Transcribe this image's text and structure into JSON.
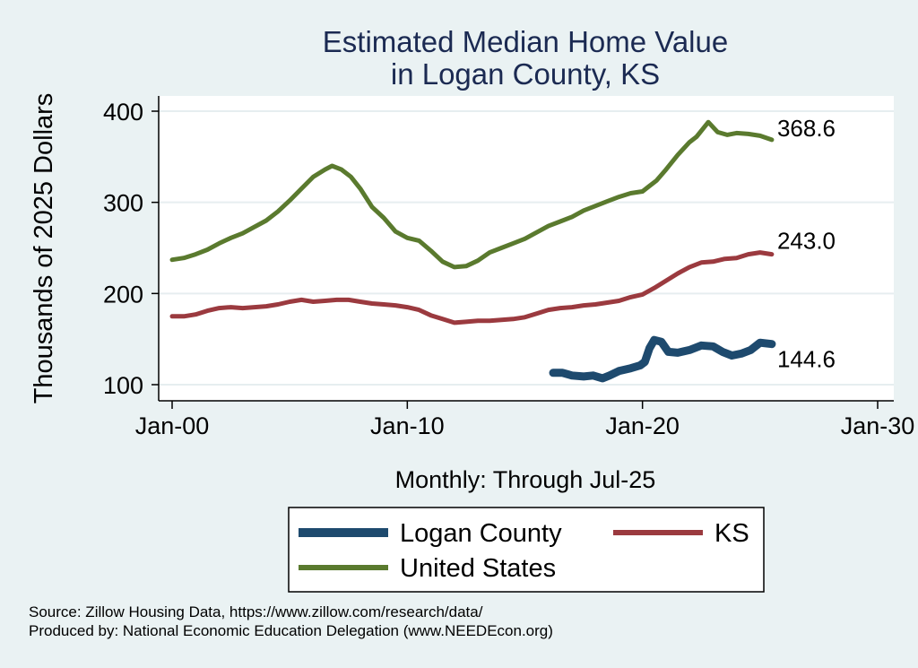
{
  "chart_data": {
    "type": "line",
    "title": [
      "Estimated Median Home Value",
      "in Logan County, KS"
    ],
    "ylabel": "Thousands of 2025 Dollars",
    "xlabel": "Monthly: Through Jul-25",
    "xlim": [
      2000,
      2030
    ],
    "ylim": [
      90,
      410
    ],
    "yticks": [
      {
        "value": 100,
        "label": "100"
      },
      {
        "value": 200,
        "label": "200"
      },
      {
        "value": 300,
        "label": "300"
      },
      {
        "value": 400,
        "label": "400"
      }
    ],
    "xticks": [
      {
        "value": 2000,
        "label": "Jan-00"
      },
      {
        "value": 2010,
        "label": "Jan-10"
      },
      {
        "value": 2020,
        "label": "Jan-20"
      },
      {
        "value": 2030,
        "label": "Jan-30"
      }
    ],
    "grid": true,
    "legend_position": "bottom",
    "series": [
      {
        "name": "United States",
        "color": "#5a7a2e",
        "end_label": "368.6",
        "points": [
          [
            2000.0,
            237
          ],
          [
            2000.5,
            239
          ],
          [
            2001.0,
            243
          ],
          [
            2001.5,
            248
          ],
          [
            2002.0,
            255
          ],
          [
            2002.5,
            261
          ],
          [
            2003.0,
            266
          ],
          [
            2003.5,
            273
          ],
          [
            2004.0,
            280
          ],
          [
            2004.5,
            290
          ],
          [
            2005.0,
            302
          ],
          [
            2005.5,
            315
          ],
          [
            2006.0,
            328
          ],
          [
            2006.5,
            336
          ],
          [
            2006.8,
            340
          ],
          [
            2007.2,
            336
          ],
          [
            2007.6,
            328
          ],
          [
            2008.0,
            315
          ],
          [
            2008.5,
            295
          ],
          [
            2009.0,
            283
          ],
          [
            2009.5,
            268
          ],
          [
            2010.0,
            261
          ],
          [
            2010.5,
            258
          ],
          [
            2011.0,
            247
          ],
          [
            2011.5,
            235
          ],
          [
            2012.0,
            229
          ],
          [
            2012.5,
            230
          ],
          [
            2013.0,
            236
          ],
          [
            2013.5,
            245
          ],
          [
            2014.0,
            250
          ],
          [
            2014.5,
            255
          ],
          [
            2015.0,
            260
          ],
          [
            2015.5,
            267
          ],
          [
            2016.0,
            274
          ],
          [
            2016.5,
            279
          ],
          [
            2017.0,
            284
          ],
          [
            2017.5,
            291
          ],
          [
            2018.0,
            296
          ],
          [
            2018.5,
            301
          ],
          [
            2019.0,
            306
          ],
          [
            2019.5,
            310
          ],
          [
            2020.0,
            312
          ],
          [
            2020.3,
            318
          ],
          [
            2020.6,
            324
          ],
          [
            2021.0,
            336
          ],
          [
            2021.5,
            352
          ],
          [
            2022.0,
            366
          ],
          [
            2022.3,
            372
          ],
          [
            2022.8,
            388
          ],
          [
            2023.2,
            377
          ],
          [
            2023.6,
            374
          ],
          [
            2024.0,
            376
          ],
          [
            2024.5,
            375
          ],
          [
            2025.0,
            373
          ],
          [
            2025.5,
            368.6
          ]
        ]
      },
      {
        "name": "KS",
        "color": "#9b3a3f",
        "end_label": "243.0",
        "points": [
          [
            2000.0,
            175
          ],
          [
            2000.5,
            175
          ],
          [
            2001.0,
            177
          ],
          [
            2001.5,
            181
          ],
          [
            2002.0,
            184
          ],
          [
            2002.5,
            185
          ],
          [
            2003.0,
            184
          ],
          [
            2003.5,
            185
          ],
          [
            2004.0,
            186
          ],
          [
            2004.5,
            188
          ],
          [
            2005.0,
            191
          ],
          [
            2005.5,
            193
          ],
          [
            2006.0,
            191
          ],
          [
            2006.5,
            192
          ],
          [
            2007.0,
            193
          ],
          [
            2007.5,
            193
          ],
          [
            2008.0,
            191
          ],
          [
            2008.5,
            189
          ],
          [
            2009.0,
            188
          ],
          [
            2009.5,
            187
          ],
          [
            2010.0,
            185
          ],
          [
            2010.5,
            182
          ],
          [
            2011.0,
            176
          ],
          [
            2011.5,
            172
          ],
          [
            2012.0,
            168
          ],
          [
            2012.5,
            169
          ],
          [
            2013.0,
            170
          ],
          [
            2013.5,
            170
          ],
          [
            2014.0,
            171
          ],
          [
            2014.5,
            172
          ],
          [
            2015.0,
            174
          ],
          [
            2015.5,
            178
          ],
          [
            2016.0,
            182
          ],
          [
            2016.5,
            184
          ],
          [
            2017.0,
            185
          ],
          [
            2017.5,
            187
          ],
          [
            2018.0,
            188
          ],
          [
            2018.5,
            190
          ],
          [
            2019.0,
            192
          ],
          [
            2019.5,
            196
          ],
          [
            2020.0,
            199
          ],
          [
            2020.5,
            206
          ],
          [
            2021.0,
            214
          ],
          [
            2021.5,
            222
          ],
          [
            2022.0,
            229
          ],
          [
            2022.5,
            234
          ],
          [
            2023.0,
            235
          ],
          [
            2023.5,
            238
          ],
          [
            2024.0,
            239
          ],
          [
            2024.5,
            243
          ],
          [
            2025.0,
            245
          ],
          [
            2025.5,
            243.0
          ]
        ]
      },
      {
        "name": "Logan County",
        "color": "#1e4a6e",
        "end_label": "144.6",
        "points": [
          [
            2016.2,
            113
          ],
          [
            2016.6,
            113
          ],
          [
            2017.0,
            110
          ],
          [
            2017.5,
            109
          ],
          [
            2017.9,
            110
          ],
          [
            2018.3,
            107
          ],
          [
            2018.6,
            110
          ],
          [
            2019.0,
            115
          ],
          [
            2019.5,
            118
          ],
          [
            2019.9,
            121
          ],
          [
            2020.1,
            125
          ],
          [
            2020.3,
            140
          ],
          [
            2020.5,
            149
          ],
          [
            2020.8,
            147
          ],
          [
            2021.1,
            136
          ],
          [
            2021.5,
            135
          ],
          [
            2022.0,
            138
          ],
          [
            2022.5,
            143
          ],
          [
            2023.0,
            142
          ],
          [
            2023.4,
            136
          ],
          [
            2023.8,
            132
          ],
          [
            2024.2,
            134
          ],
          [
            2024.6,
            138
          ],
          [
            2025.0,
            146
          ],
          [
            2025.5,
            144.6
          ]
        ]
      }
    ]
  },
  "legend": [
    {
      "label": "Logan County",
      "color": "#1e4a6e"
    },
    {
      "label": "KS",
      "color": "#9b3a3f"
    },
    {
      "label": "United States",
      "color": "#5a7a2e"
    }
  ],
  "source": {
    "line1": "Source: Zillow Housing Data, https://www.zillow.com/research/data/",
    "line2": "Produced by: National Economic Education Delegation (www.NEEDEcon.org)"
  }
}
